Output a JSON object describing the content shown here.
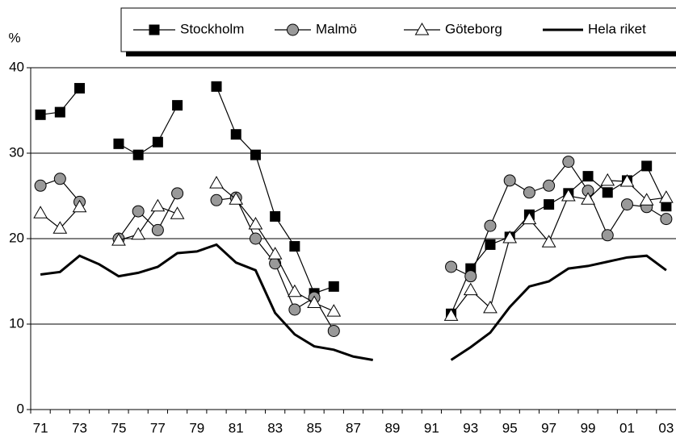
{
  "chart_data": {
    "type": "line",
    "y_label": "%",
    "categories": [
      "71",
      null,
      "73",
      null,
      "75",
      null,
      "77",
      null,
      "79",
      null,
      "81",
      null,
      "83",
      null,
      "85",
      null,
      "87",
      null,
      "89",
      null,
      "91",
      null,
      "93",
      null,
      "95",
      null,
      "97",
      null,
      "99",
      null,
      "01",
      null,
      "03"
    ],
    "ylim": [
      0,
      40
    ],
    "yticks": [
      0,
      10,
      20,
      30,
      40
    ],
    "grid": true,
    "series": [
      {
        "name": "Stockholm",
        "color": "#000000",
        "marker": "square",
        "values": [
          34.5,
          34.8,
          37.6,
          null,
          31.1,
          29.8,
          31.3,
          35.6,
          null,
          37.8,
          32.2,
          29.8,
          22.6,
          19.1,
          13.6,
          14.4,
          null,
          null,
          null,
          null,
          null,
          11.2,
          16.5,
          19.3,
          20.2,
          22.8,
          24.0,
          25.3,
          27.3,
          25.4,
          26.8,
          28.5,
          23.8
        ]
      },
      {
        "name": "Malmö",
        "color": "#999999",
        "marker": "circle",
        "values": [
          26.2,
          27.0,
          24.3,
          null,
          20.0,
          23.2,
          21.0,
          25.3,
          null,
          24.5,
          24.8,
          20.0,
          17.1,
          11.7,
          13.1,
          9.2,
          null,
          null,
          null,
          null,
          null,
          16.7,
          15.6,
          21.5,
          26.8,
          25.4,
          26.2,
          29.0,
          25.6,
          20.4,
          24.0,
          23.7,
          22.3
        ]
      },
      {
        "name": "Göteborg",
        "color": "#ffffff",
        "marker": "triangle",
        "values": [
          23.0,
          21.2,
          23.7,
          null,
          19.8,
          20.5,
          23.8,
          22.9,
          null,
          26.5,
          24.6,
          21.7,
          18.2,
          13.8,
          12.5,
          11.5,
          null,
          null,
          null,
          null,
          null,
          11.0,
          14.0,
          11.9,
          20.1,
          22.3,
          19.6,
          25.0,
          24.6,
          26.8,
          26.7,
          24.5,
          24.8
        ]
      },
      {
        "name": "Hela riket",
        "color": "#000000",
        "marker": "none",
        "values": [
          15.8,
          16.1,
          18.0,
          17.0,
          15.6,
          16.0,
          16.7,
          18.3,
          18.5,
          19.3,
          17.2,
          16.3,
          11.3,
          8.8,
          7.4,
          7.0,
          6.2,
          5.8,
          null,
          null,
          null,
          5.8,
          7.3,
          9.0,
          12.0,
          14.4,
          15.0,
          16.5,
          16.8,
          17.3,
          17.8,
          18.0,
          16.3
        ]
      }
    ]
  }
}
